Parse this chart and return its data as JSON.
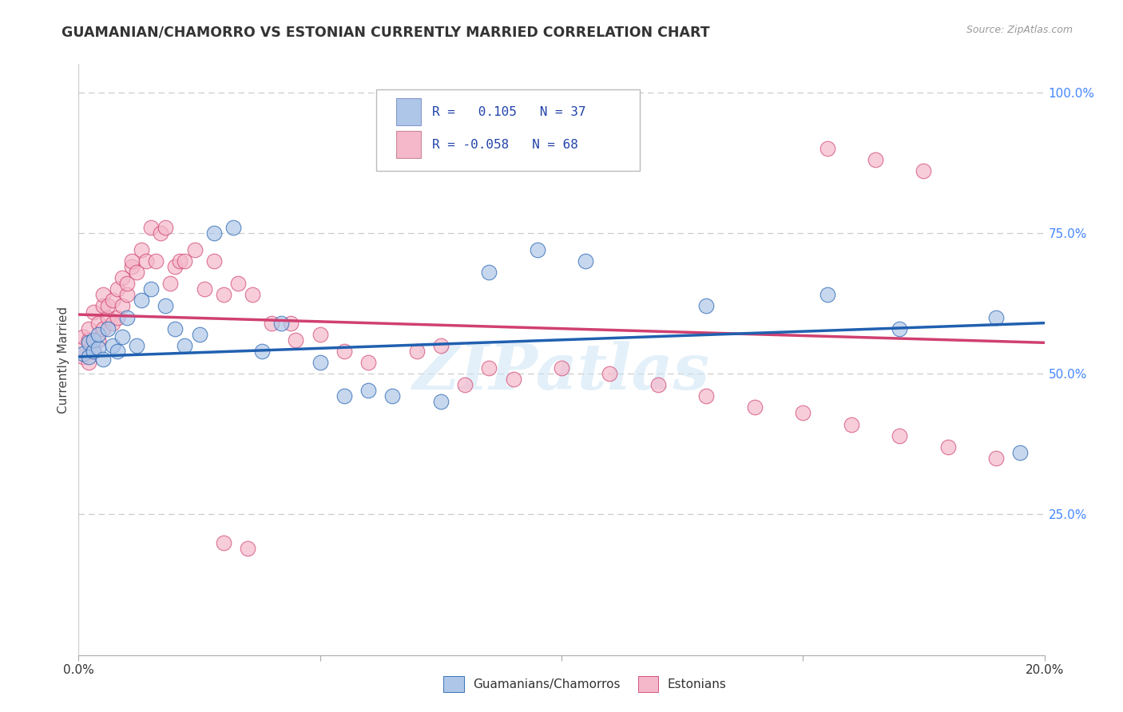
{
  "title": "GUAMANIAN/CHAMORRO VS ESTONIAN CURRENTLY MARRIED CORRELATION CHART",
  "source": "Source: ZipAtlas.com",
  "ylabel": "Currently Married",
  "right_yticks": [
    "100.0%",
    "75.0%",
    "50.0%",
    "25.0%"
  ],
  "right_ytick_vals": [
    1.0,
    0.75,
    0.5,
    0.25
  ],
  "blue_color": "#aec6e8",
  "pink_color": "#f4b8ca",
  "blue_line_color": "#2060b0",
  "pink_line_color": "#d04070",
  "watermark": "ZIPatlas",
  "xmin": 0.0,
  "xmax": 0.2,
  "ymin": 0.0,
  "ymax": 1.05,
  "blue_trend_x0": 0.0,
  "blue_trend_x1": 0.2,
  "blue_trend_y0": 0.53,
  "blue_trend_y1": 0.59,
  "pink_trend_x0": 0.0,
  "pink_trend_x1": 0.2,
  "pink_trend_y0": 0.605,
  "pink_trend_y1": 0.555,
  "blue_scatter_x": [
    0.001,
    0.002,
    0.002,
    0.003,
    0.003,
    0.004,
    0.004,
    0.005,
    0.006,
    0.007,
    0.008,
    0.009,
    0.01,
    0.012,
    0.013,
    0.015,
    0.018,
    0.02,
    0.022,
    0.025,
    0.028,
    0.032,
    0.038,
    0.042,
    0.05,
    0.055,
    0.06,
    0.065,
    0.075,
    0.085,
    0.095,
    0.105,
    0.13,
    0.155,
    0.17,
    0.19,
    0.195
  ],
  "blue_scatter_y": [
    0.535,
    0.53,
    0.555,
    0.54,
    0.56,
    0.545,
    0.57,
    0.525,
    0.58,
    0.55,
    0.54,
    0.565,
    0.6,
    0.55,
    0.63,
    0.65,
    0.62,
    0.58,
    0.55,
    0.57,
    0.75,
    0.76,
    0.54,
    0.59,
    0.52,
    0.46,
    0.47,
    0.46,
    0.45,
    0.68,
    0.72,
    0.7,
    0.62,
    0.64,
    0.58,
    0.6,
    0.36
  ],
  "pink_scatter_x": [
    0.001,
    0.001,
    0.001,
    0.002,
    0.002,
    0.002,
    0.003,
    0.003,
    0.004,
    0.004,
    0.005,
    0.005,
    0.005,
    0.006,
    0.006,
    0.007,
    0.007,
    0.008,
    0.008,
    0.009,
    0.009,
    0.01,
    0.01,
    0.011,
    0.011,
    0.012,
    0.013,
    0.014,
    0.015,
    0.016,
    0.017,
    0.018,
    0.019,
    0.02,
    0.021,
    0.022,
    0.024,
    0.026,
    0.028,
    0.03,
    0.033,
    0.036,
    0.04,
    0.044,
    0.05,
    0.055,
    0.06,
    0.07,
    0.08,
    0.09,
    0.1,
    0.11,
    0.12,
    0.13,
    0.14,
    0.15,
    0.16,
    0.17,
    0.18,
    0.19,
    0.03,
    0.035,
    0.045,
    0.075,
    0.085,
    0.155,
    0.165,
    0.175
  ],
  "pink_scatter_y": [
    0.53,
    0.545,
    0.565,
    0.52,
    0.56,
    0.58,
    0.54,
    0.61,
    0.56,
    0.59,
    0.58,
    0.62,
    0.64,
    0.6,
    0.62,
    0.59,
    0.63,
    0.65,
    0.6,
    0.62,
    0.67,
    0.64,
    0.66,
    0.69,
    0.7,
    0.68,
    0.72,
    0.7,
    0.76,
    0.7,
    0.75,
    0.76,
    0.66,
    0.69,
    0.7,
    0.7,
    0.72,
    0.65,
    0.7,
    0.64,
    0.66,
    0.64,
    0.59,
    0.59,
    0.57,
    0.54,
    0.52,
    0.54,
    0.48,
    0.49,
    0.51,
    0.5,
    0.48,
    0.46,
    0.44,
    0.43,
    0.41,
    0.39,
    0.37,
    0.35,
    0.2,
    0.19,
    0.56,
    0.55,
    0.51,
    0.9,
    0.88,
    0.86
  ]
}
